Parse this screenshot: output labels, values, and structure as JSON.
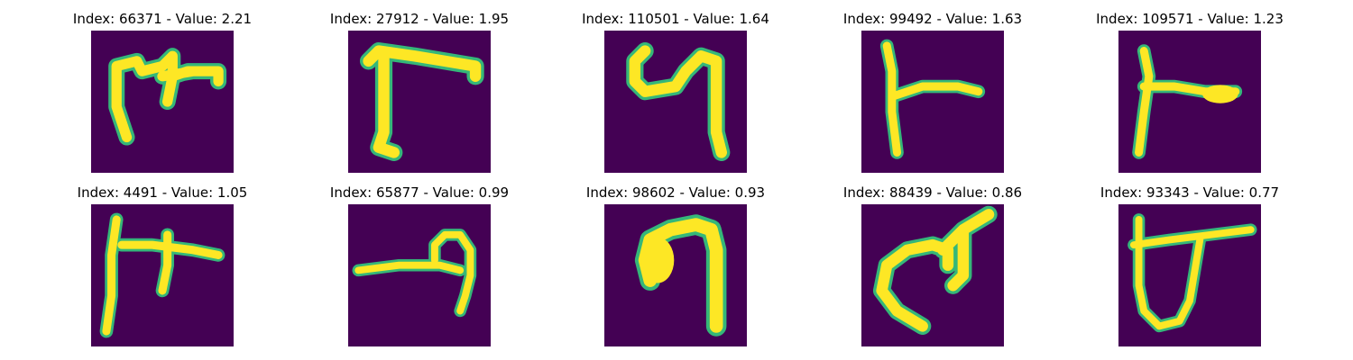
{
  "background_color": "#440154",
  "stroke_color": "#fde725",
  "edge_color": "#35b779",
  "panels": [
    {
      "title": "Index: 66371 - Value: 2.21"
    },
    {
      "title": "Index: 27912 - Value: 1.95"
    },
    {
      "title": "Index: 110501 - Value: 1.64"
    },
    {
      "title": "Index: 99492 - Value: 1.63"
    },
    {
      "title": "Index: 109571 - Value: 1.23"
    },
    {
      "title": "Index: 4491 - Value: 1.05"
    },
    {
      "title": "Index: 65877 - Value: 0.99"
    },
    {
      "title": "Index: 98602 - Value: 0.93"
    },
    {
      "title": "Index: 88439 - Value: 0.86"
    },
    {
      "title": "Index: 93343 - Value: 0.77"
    }
  ]
}
